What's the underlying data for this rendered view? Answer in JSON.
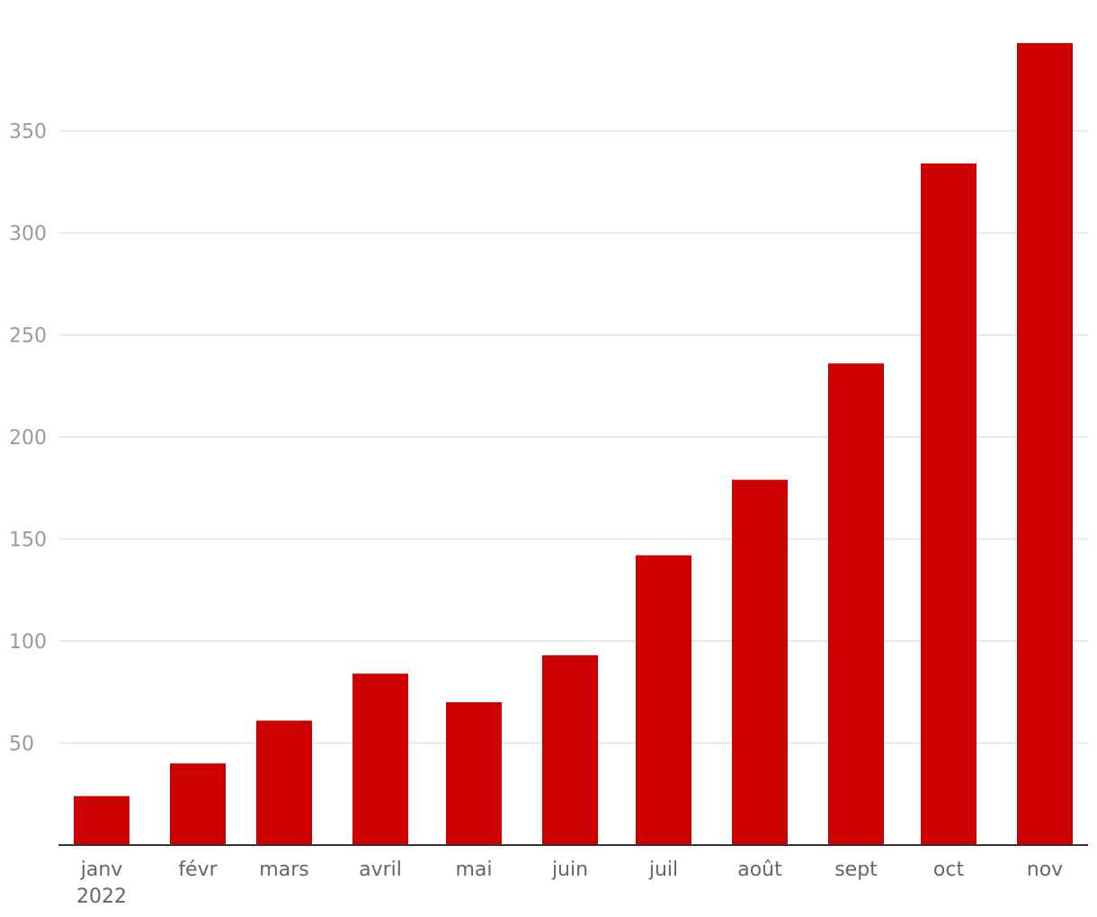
{
  "chart_data": {
    "type": "bar",
    "title": "",
    "xlabel": "",
    "ylabel": "",
    "categories": [
      "janv",
      "févr",
      "mars",
      "avril",
      "mai",
      "juin",
      "juil",
      "août",
      "sept",
      "oct",
      "nov"
    ],
    "category_sublabels": [
      "2022",
      "",
      "",
      "",
      "",
      "",
      "",
      "",
      "",
      "",
      ""
    ],
    "values": [
      24,
      40,
      61,
      84,
      70,
      93,
      142,
      179,
      236,
      334,
      393
    ],
    "ylim": [
      0,
      400
    ],
    "yticks": [
      50,
      100,
      150,
      200,
      250,
      300,
      350
    ],
    "grid": true,
    "legend": "none",
    "bar_color": "#cc0000"
  }
}
